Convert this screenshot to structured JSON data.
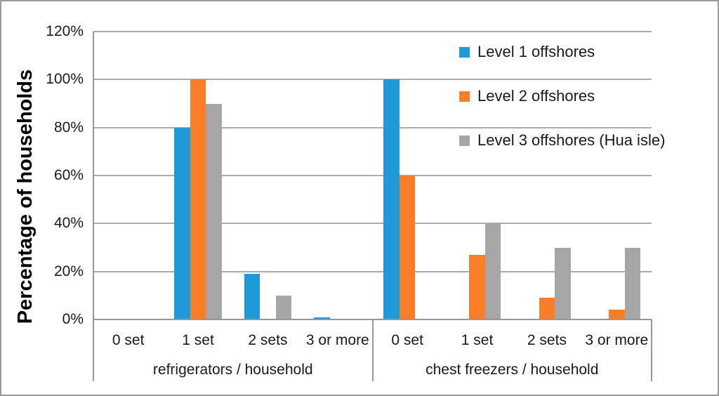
{
  "figure": {
    "background": "#ffffff",
    "border_color": "#9a9a9a"
  },
  "chart_data": {
    "type": "bar",
    "title": "",
    "xlabel": "",
    "ylabel": "Percentage of households",
    "ylim": [
      0,
      120
    ],
    "ytick_step": 20,
    "ytick_labels": [
      "0%",
      "20%",
      "40%",
      "60%",
      "80%",
      "100%",
      "120%"
    ],
    "grid": true,
    "legend_position": "top-right-inside",
    "grid_color": "#acacac",
    "axis_color": "#989898",
    "groups": [
      {
        "label": "refrigerators / household",
        "categories": [
          "0 set",
          "1 set",
          "2 sets",
          "3 or more"
        ]
      },
      {
        "label": "chest freezers / household",
        "categories": [
          "0 set",
          "1 set",
          "2 sets",
          "3 or more"
        ]
      }
    ],
    "series": [
      {
        "name": "Level 1 offshores",
        "color": "#1F9AD6",
        "values": [
          0,
          80,
          19,
          1,
          100,
          0,
          0,
          0
        ]
      },
      {
        "name": "Level 2 offshores",
        "color": "#FA7D28",
        "values": [
          0,
          100,
          0,
          0,
          60,
          27,
          9,
          4
        ]
      },
      {
        "name": "Level 3 offshores (Hua isle)",
        "color": "#A6A6A6",
        "values": [
          0,
          90,
          10,
          0,
          0,
          40,
          30,
          30
        ]
      }
    ]
  }
}
